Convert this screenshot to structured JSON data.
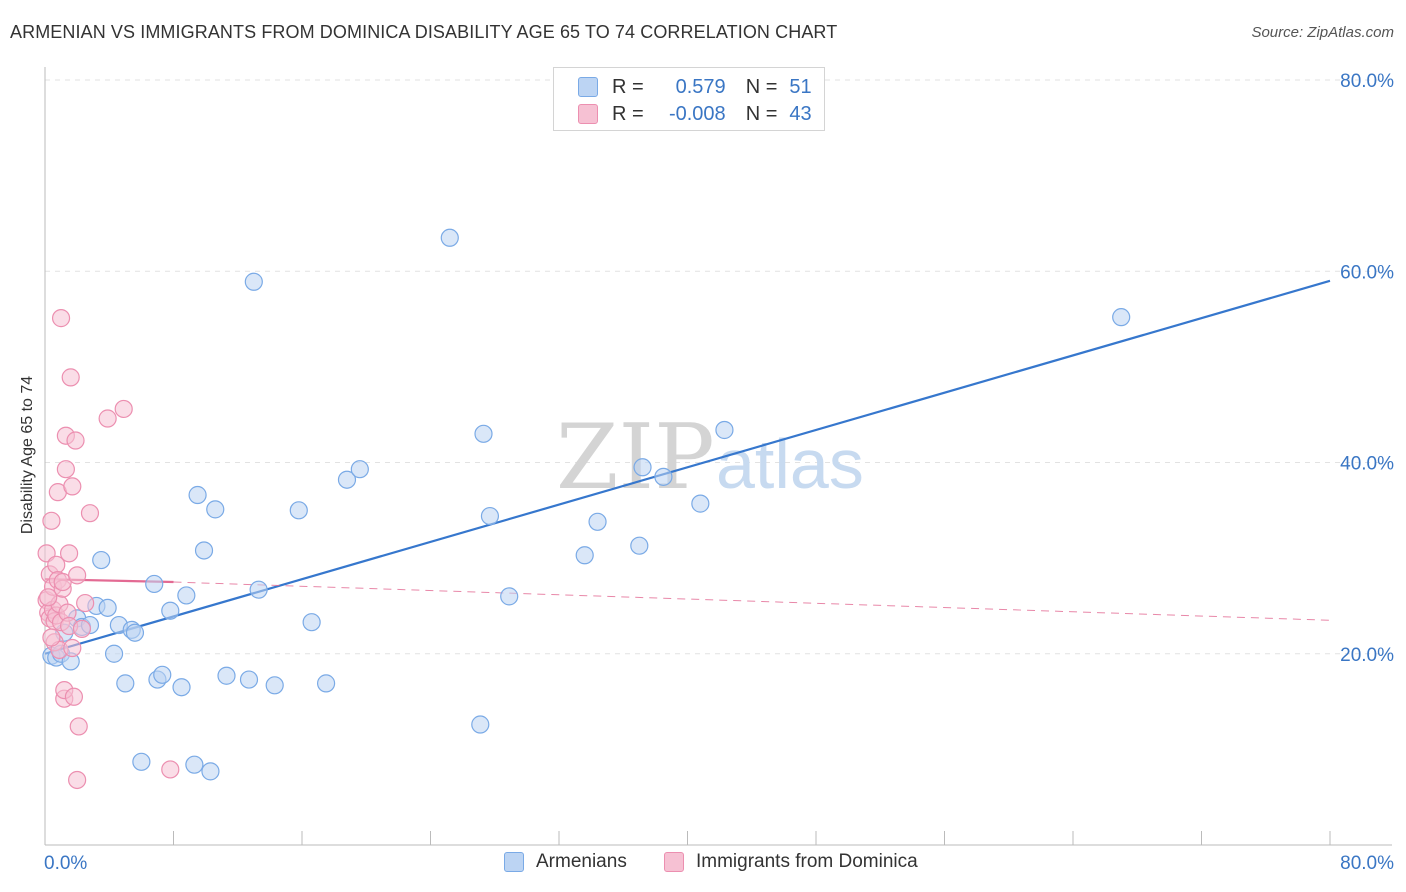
{
  "chart_data": {
    "type": "scatter",
    "title": "ARMENIAN VS IMMIGRANTS FROM DOMINICA DISABILITY AGE 65 TO 74 CORRELATION CHART",
    "source": "Source: ZipAtlas.com",
    "ylabel": "Disability Age 65 to 74",
    "xlim": [
      0,
      80
    ],
    "ylim": [
      0,
      80
    ],
    "x_tick_labels": [
      "0.0%",
      "80.0%"
    ],
    "y_tick_labels": [
      "20.0%",
      "40.0%",
      "60.0%",
      "80.0%"
    ],
    "y_ticks": [
      20,
      40,
      60,
      80
    ],
    "watermark": {
      "part1": "ZIP",
      "part2": "atlas"
    },
    "legend": {
      "rows": [
        {
          "r_label": "R =",
          "r_value": "0.579",
          "n_label": "N =",
          "n_value": "51"
        },
        {
          "r_label": "R =",
          "r_value": "-0.008",
          "n_label": "N =",
          "n_value": "43"
        }
      ]
    },
    "series": [
      {
        "name": "Armenians",
        "color": "#7aaae6",
        "fill": "#bcd4f3",
        "trend": {
          "x0": 0,
          "y0": 20.0,
          "x1": 80,
          "y1": 59.0,
          "style": "solid",
          "color": "#3677cd"
        },
        "points": [
          [
            0.4,
            19.8
          ],
          [
            0.7,
            19.6
          ],
          [
            1.0,
            20.0
          ],
          [
            1.2,
            22.2
          ],
          [
            1.6,
            19.2
          ],
          [
            2.0,
            23.7
          ],
          [
            2.3,
            22.8
          ],
          [
            2.8,
            23.0
          ],
          [
            3.2,
            25.0
          ],
          [
            3.5,
            29.8
          ],
          [
            3.9,
            24.8
          ],
          [
            4.3,
            20.0
          ],
          [
            4.6,
            23.0
          ],
          [
            5.0,
            16.9
          ],
          [
            5.4,
            22.5
          ],
          [
            5.6,
            22.2
          ],
          [
            6.0,
            8.7
          ],
          [
            6.8,
            27.3
          ],
          [
            7.0,
            17.3
          ],
          [
            7.3,
            17.8
          ],
          [
            7.8,
            24.5
          ],
          [
            8.5,
            16.5
          ],
          [
            8.8,
            26.1
          ],
          [
            9.3,
            8.4
          ],
          [
            9.5,
            36.6
          ],
          [
            9.9,
            30.8
          ],
          [
            10.3,
            7.7
          ],
          [
            10.6,
            35.1
          ],
          [
            11.3,
            17.7
          ],
          [
            12.7,
            17.3
          ],
          [
            13.0,
            58.9
          ],
          [
            13.3,
            26.7
          ],
          [
            14.3,
            16.7
          ],
          [
            15.8,
            35.0
          ],
          [
            16.6,
            23.3
          ],
          [
            17.5,
            16.9
          ],
          [
            18.8,
            38.2
          ],
          [
            19.6,
            39.3
          ],
          [
            25.2,
            63.5
          ],
          [
            27.1,
            12.6
          ],
          [
            27.3,
            43.0
          ],
          [
            27.7,
            34.4
          ],
          [
            28.9,
            26.0
          ],
          [
            33.6,
            30.3
          ],
          [
            34.4,
            33.8
          ],
          [
            37.0,
            31.3
          ],
          [
            37.2,
            39.5
          ],
          [
            38.5,
            38.5
          ],
          [
            40.8,
            35.7
          ],
          [
            42.3,
            43.4
          ],
          [
            67.0,
            55.2
          ]
        ]
      },
      {
        "name": "Immigrants from Dominica",
        "color": "#ec8fb0",
        "fill": "#f6c1d3",
        "trend": {
          "x0": 0,
          "y0": 27.8,
          "x1": 8,
          "y1": 27.5,
          "dash_x1": 80,
          "dash_y1": 23.5,
          "style": "solid-then-dashed",
          "color": "#e36a93"
        },
        "points": [
          [
            0.1,
            30.5
          ],
          [
            0.1,
            25.6
          ],
          [
            0.2,
            24.3
          ],
          [
            0.3,
            23.7
          ],
          [
            0.3,
            28.3
          ],
          [
            0.4,
            33.9
          ],
          [
            0.5,
            27.0
          ],
          [
            0.5,
            24.6
          ],
          [
            0.6,
            21.2
          ],
          [
            0.6,
            23.4
          ],
          [
            0.7,
            24.0
          ],
          [
            0.7,
            29.3
          ],
          [
            0.8,
            36.9
          ],
          [
            0.8,
            27.7
          ],
          [
            0.9,
            25.2
          ],
          [
            0.9,
            20.4
          ],
          [
            1.0,
            55.1
          ],
          [
            1.0,
            23.3
          ],
          [
            1.1,
            26.8
          ],
          [
            1.1,
            27.5
          ],
          [
            1.2,
            15.3
          ],
          [
            1.2,
            16.2
          ],
          [
            1.3,
            39.3
          ],
          [
            1.3,
            42.8
          ],
          [
            1.4,
            24.3
          ],
          [
            1.5,
            30.5
          ],
          [
            1.5,
            22.9
          ],
          [
            1.6,
            48.9
          ],
          [
            1.7,
            20.6
          ],
          [
            1.7,
            37.5
          ],
          [
            1.8,
            15.5
          ],
          [
            1.9,
            42.3
          ],
          [
            2.0,
            6.8
          ],
          [
            2.0,
            28.2
          ],
          [
            2.1,
            12.4
          ],
          [
            2.3,
            22.6
          ],
          [
            2.5,
            25.3
          ],
          [
            2.8,
            34.7
          ],
          [
            3.9,
            44.6
          ],
          [
            4.9,
            45.6
          ],
          [
            7.8,
            7.9
          ],
          [
            0.2,
            25.9
          ],
          [
            0.4,
            21.7
          ]
        ]
      }
    ]
  }
}
